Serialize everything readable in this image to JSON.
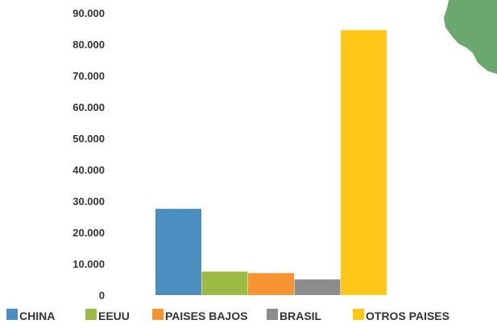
{
  "chart_data": {
    "type": "bar",
    "categories": [
      "CHINA",
      "EEUU",
      "PAISES BAJOS",
      "BRASIL",
      "OTROS PAISES"
    ],
    "values": [
      27500,
      7500,
      7000,
      5000,
      84500
    ],
    "colors": [
      "#4a8fc0",
      "#9bbb45",
      "#f79432",
      "#8c8c8c",
      "#ffc718"
    ],
    "ylim": [
      0,
      90000
    ],
    "yticks": [
      0,
      10000,
      20000,
      30000,
      40000,
      50000,
      60000,
      70000,
      80000,
      90000
    ],
    "ytick_labels": [
      "0",
      "10.000",
      "20.000",
      "30.000",
      "40.000",
      "50.000",
      "60.000",
      "70.000",
      "80.000",
      "90.000"
    ],
    "grid": false,
    "legend_position": "bottom",
    "title": "",
    "xlabel": "",
    "ylabel": ""
  },
  "decor": {
    "map_color": "#6aa86f",
    "map_icon": "map-silhouette-icon"
  }
}
